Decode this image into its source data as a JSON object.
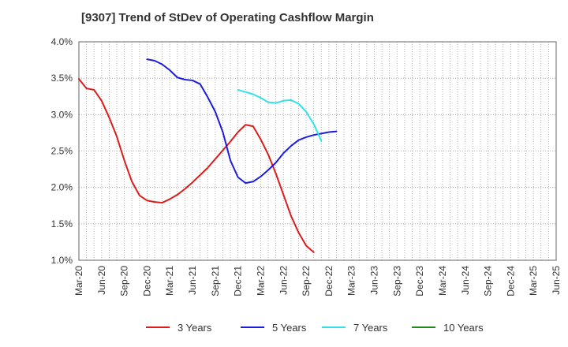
{
  "chart_data": {
    "type": "line",
    "title": "[9307]  Trend of StDev of Operating Cashflow Margin",
    "xlabel": "",
    "ylabel": "",
    "ylim": [
      1.0,
      4.0
    ],
    "y_ticks": [
      "1.0%",
      "1.5%",
      "2.0%",
      "2.5%",
      "3.0%",
      "3.5%",
      "4.0%"
    ],
    "y_tick_values": [
      1.0,
      1.5,
      2.0,
      2.5,
      3.0,
      3.5,
      4.0
    ],
    "x_ticks": [
      "Mar-20",
      "Jun-20",
      "Sep-20",
      "Dec-20",
      "Mar-21",
      "Jun-21",
      "Sep-21",
      "Dec-21",
      "Mar-22",
      "Jun-22",
      "Sep-22",
      "Dec-22",
      "Mar-23",
      "Jun-23",
      "Sep-23",
      "Dec-23",
      "Mar-24",
      "Jun-24",
      "Sep-24",
      "Dec-24",
      "Mar-25",
      "Jun-25"
    ],
    "grid": true,
    "legend_position": "bottom",
    "series": [
      {
        "name": "3 Years",
        "color": "#dd1c1c",
        "start_index": 0,
        "values": [
          3.49,
          3.36,
          3.34,
          3.19,
          2.96,
          2.7,
          2.37,
          2.08,
          1.89,
          1.82,
          1.8,
          1.79,
          1.84,
          1.9,
          1.98,
          2.07,
          2.17,
          2.27,
          2.39,
          2.51,
          2.63,
          2.76,
          2.86,
          2.84,
          2.66,
          2.45,
          2.19,
          1.9,
          1.61,
          1.38,
          1.2,
          1.11
        ]
      },
      {
        "name": "5 Years",
        "color": "#1c1cdd",
        "start_index": 9,
        "values": [
          3.76,
          3.74,
          3.69,
          3.61,
          3.51,
          3.48,
          3.47,
          3.42,
          3.24,
          3.04,
          2.76,
          2.37,
          2.14,
          2.06,
          2.08,
          2.15,
          2.24,
          2.34,
          2.47,
          2.57,
          2.65,
          2.69,
          2.72,
          2.74,
          2.76,
          2.77
        ]
      },
      {
        "name": "7 Years",
        "color": "#33e0e8",
        "start_index": 21,
        "values": [
          3.34,
          3.31,
          3.28,
          3.23,
          3.17,
          3.16,
          3.19,
          3.2,
          3.15,
          3.04,
          2.87,
          2.64
        ]
      },
      {
        "name": "10 Years",
        "color": "#1e8a1e",
        "start_index": 0,
        "values": []
      }
    ]
  }
}
